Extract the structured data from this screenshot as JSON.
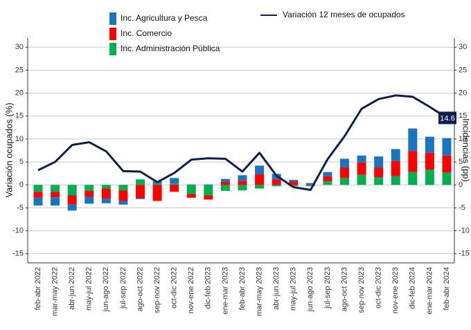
{
  "chart_data": {
    "type": "bar",
    "stacked": true,
    "ylabel": "Variación ocupados (%)",
    "y2label": "Incidencias (pp)",
    "categories": [
      "feb-abr 2022",
      "mar-may 2022",
      "abr-jun 2022",
      "may-jul 2022",
      "jun-ago 2022",
      "jul-sep 2022",
      "ago-oct 2022",
      "sep-nov 2022",
      "oct-dic 2022",
      "nov-ene 2022",
      "dic-feb 2023",
      "ene-mar 2023",
      "feb-abr 2023",
      "mar-may 2023",
      "abr-jun 2023",
      "may-jul 2023",
      "jun-ago 2023",
      "jul-sep 2023",
      "ago-oct 2023",
      "sep-nov 2023",
      "oct-dic 2023",
      "nov-ene 2023",
      "dic-feb 2024",
      "ene-mar 2024",
      "feb-abr 2024"
    ],
    "series": [
      {
        "name": "Inc. Agricultura y Pesca",
        "color": "#1a75c0",
        "axis": "y2",
        "values": [
          -1.7,
          -1.8,
          -1.3,
          -1.5,
          -1.0,
          -0.8,
          -0.2,
          0.5,
          1.2,
          0.1,
          0.1,
          0.6,
          1.2,
          1.9,
          1.2,
          0.3,
          0.3,
          0.9,
          1.9,
          1.5,
          2.4,
          2.6,
          4.9,
          3.5,
          3.8
        ]
      },
      {
        "name": "Inc. Comercio",
        "color": "#ff0000",
        "axis": "y2",
        "values": [
          -1.3,
          -1.2,
          -2.0,
          -1.3,
          -2.2,
          -2.3,
          -2.9,
          -3.5,
          -1.5,
          -0.8,
          -0.9,
          0.7,
          0.9,
          2.3,
          1.2,
          0.8,
          0.1,
          1.1,
          2.3,
          2.7,
          2.1,
          3.3,
          4.6,
          3.7,
          3.7
        ]
      },
      {
        "name": "Inc. Administración Pública",
        "color": "#00b050",
        "axis": "y2",
        "values": [
          -1.5,
          -1.5,
          -2.3,
          -1.3,
          -0.8,
          -1.2,
          1.2,
          0.3,
          0.3,
          -2.0,
          -2.3,
          -1.3,
          -1.2,
          -0.8,
          -0.3,
          -0.3,
          -0.3,
          0.8,
          1.5,
          2.2,
          1.7,
          1.9,
          2.8,
          3.3,
          2.7
        ]
      },
      {
        "name": "Variación 12 meses de ocupados",
        "color": "#0d1f4f",
        "type": "line",
        "values": [
          3.2,
          5.0,
          8.7,
          9.3,
          7.3,
          3.0,
          2.9,
          0.6,
          2.6,
          5.5,
          5.8,
          5.7,
          2.9,
          7.0,
          2.0,
          -0.5,
          -1.1,
          5.6,
          10.6,
          16.6,
          18.7,
          19.5,
          19.2,
          17.0,
          14.6
        ]
      }
    ],
    "ylim": [
      -17,
      32
    ],
    "yticks": [
      -15,
      -10,
      -5,
      0,
      5,
      10,
      15,
      20,
      25,
      30
    ],
    "y2lim": [
      -17,
      32
    ],
    "y2ticks": [
      -15,
      -10,
      -5,
      0,
      5,
      10,
      15,
      20,
      25,
      30
    ],
    "grid": true
  }
}
